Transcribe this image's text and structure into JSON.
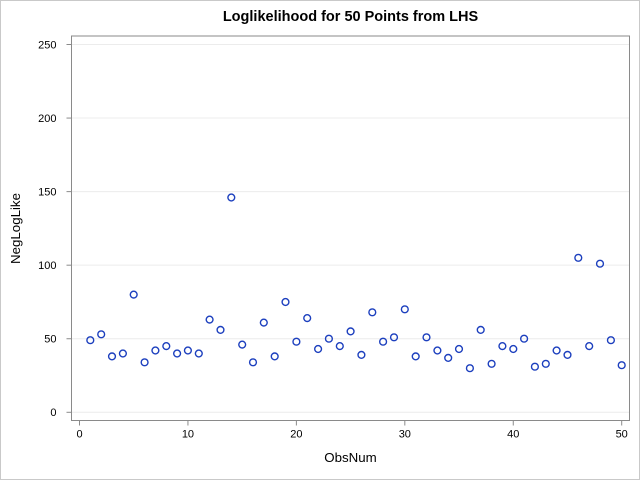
{
  "chart_data": {
    "type": "scatter",
    "title": "Loglikelihood for 50 Points from LHS",
    "xlabel": "ObsNum",
    "ylabel": "NegLogLike",
    "xlim": [
      0,
      50
    ],
    "ylim": [
      0,
      250
    ],
    "xticks": [
      0,
      10,
      20,
      30,
      40,
      50
    ],
    "yticks": [
      0,
      50,
      100,
      150,
      200,
      250
    ],
    "grid": "horizontal-only",
    "legend": "none",
    "marker": "open-circle",
    "colors": {
      "marker": "#1c3fbe",
      "gridline": "#ececec",
      "axis_frame": "#8a8a8a",
      "tick": "#8a8a8a",
      "text": "#000000",
      "figure_border": "#c9c9c9",
      "background": "#ffffff"
    },
    "x": [
      1,
      2,
      3,
      4,
      5,
      6,
      7,
      8,
      9,
      10,
      11,
      12,
      13,
      14,
      15,
      16,
      17,
      18,
      19,
      20,
      21,
      22,
      23,
      24,
      25,
      26,
      27,
      28,
      29,
      30,
      31,
      32,
      33,
      34,
      35,
      36,
      37,
      38,
      39,
      40,
      41,
      42,
      43,
      44,
      45,
      46,
      47,
      48,
      49,
      50
    ],
    "y": [
      49,
      53,
      38,
      40,
      80,
      34,
      42,
      45,
      40,
      42,
      40,
      63,
      56,
      146,
      46,
      34,
      61,
      38,
      75,
      48,
      64,
      43,
      50,
      45,
      55,
      39,
      68,
      48,
      51,
      70,
      38,
      51,
      42,
      37,
      43,
      30,
      56,
      33,
      45,
      43,
      50,
      31,
      33,
      42,
      39,
      105,
      45,
      101,
      49,
      32
    ]
  }
}
